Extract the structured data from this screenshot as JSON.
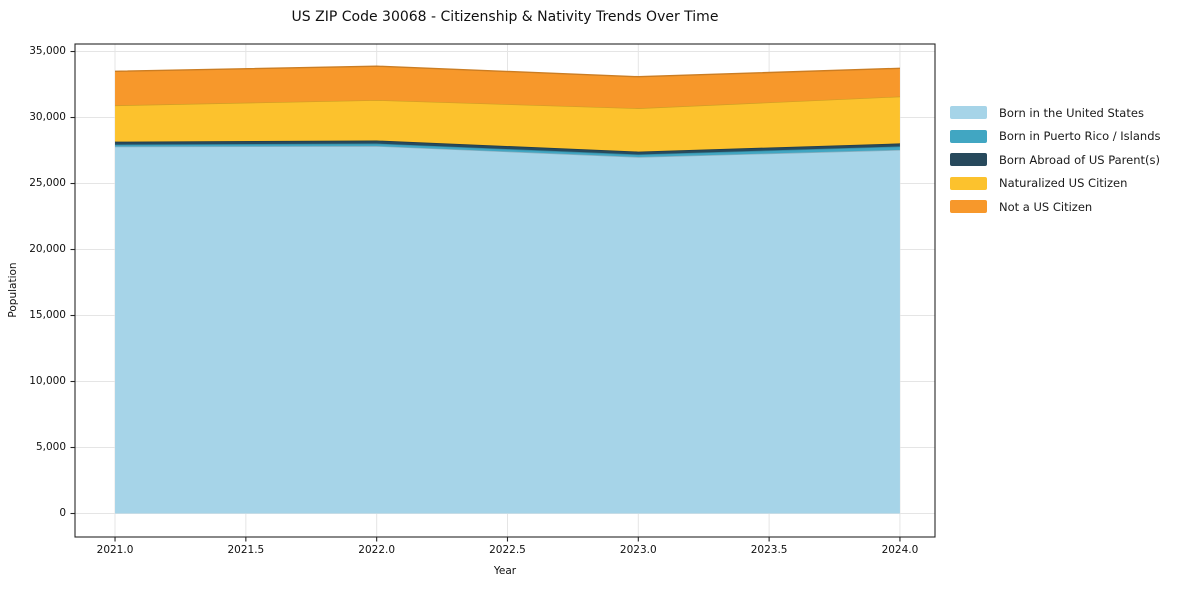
{
  "title": "US ZIP Code 30068 - Citizenship & Nativity Trends Over Time",
  "chart_data": {
    "type": "area",
    "stacked": true,
    "title": "US ZIP Code 30068 - Citizenship & Nativity Trends Over Time",
    "xlabel": "Year",
    "ylabel": "Population",
    "x": [
      2021,
      2022,
      2023,
      2024
    ],
    "series": [
      {
        "name": "Born in the United States",
        "color": "#a6d4e8",
        "values": [
          27800,
          27840,
          27010,
          27550
        ]
      },
      {
        "name": "Born in Puerto Rico / Islands",
        "color": "#41a6c2",
        "values": [
          150,
          190,
          190,
          260
        ]
      },
      {
        "name": "Born Abroad of US Parent(s)",
        "color": "#27495c",
        "values": [
          220,
          230,
          220,
          230
        ]
      },
      {
        "name": "Naturalized US Citizen",
        "color": "#fcc22d",
        "values": [
          2750,
          3060,
          3280,
          3550
        ]
      },
      {
        "name": "Not a US Citizen",
        "color": "#f7982b",
        "values": [
          2580,
          2570,
          2390,
          2140
        ]
      }
    ],
    "x_tick_labels": [
      "2021.0",
      "2021.5",
      "2022.0",
      "2022.5",
      "2023.0",
      "2023.5",
      "2024.0"
    ],
    "x_tick_values": [
      2021,
      2021.5,
      2022,
      2022.5,
      2023,
      2023.5,
      2024
    ],
    "y_tick_labels": [
      "0",
      "5,000",
      "10,000",
      "15,000",
      "20,000",
      "25,000",
      "30,000",
      "35,000"
    ],
    "y_tick_values": [
      0,
      5000,
      10000,
      15000,
      20000,
      25000,
      30000,
      35000
    ],
    "xlim": [
      2020.847,
      2024.134
    ],
    "ylim": [
      -1780,
      35570
    ],
    "grid": true,
    "legend_position": "right",
    "grid_color": "#e5e5e5",
    "frame_color": "#262626"
  }
}
